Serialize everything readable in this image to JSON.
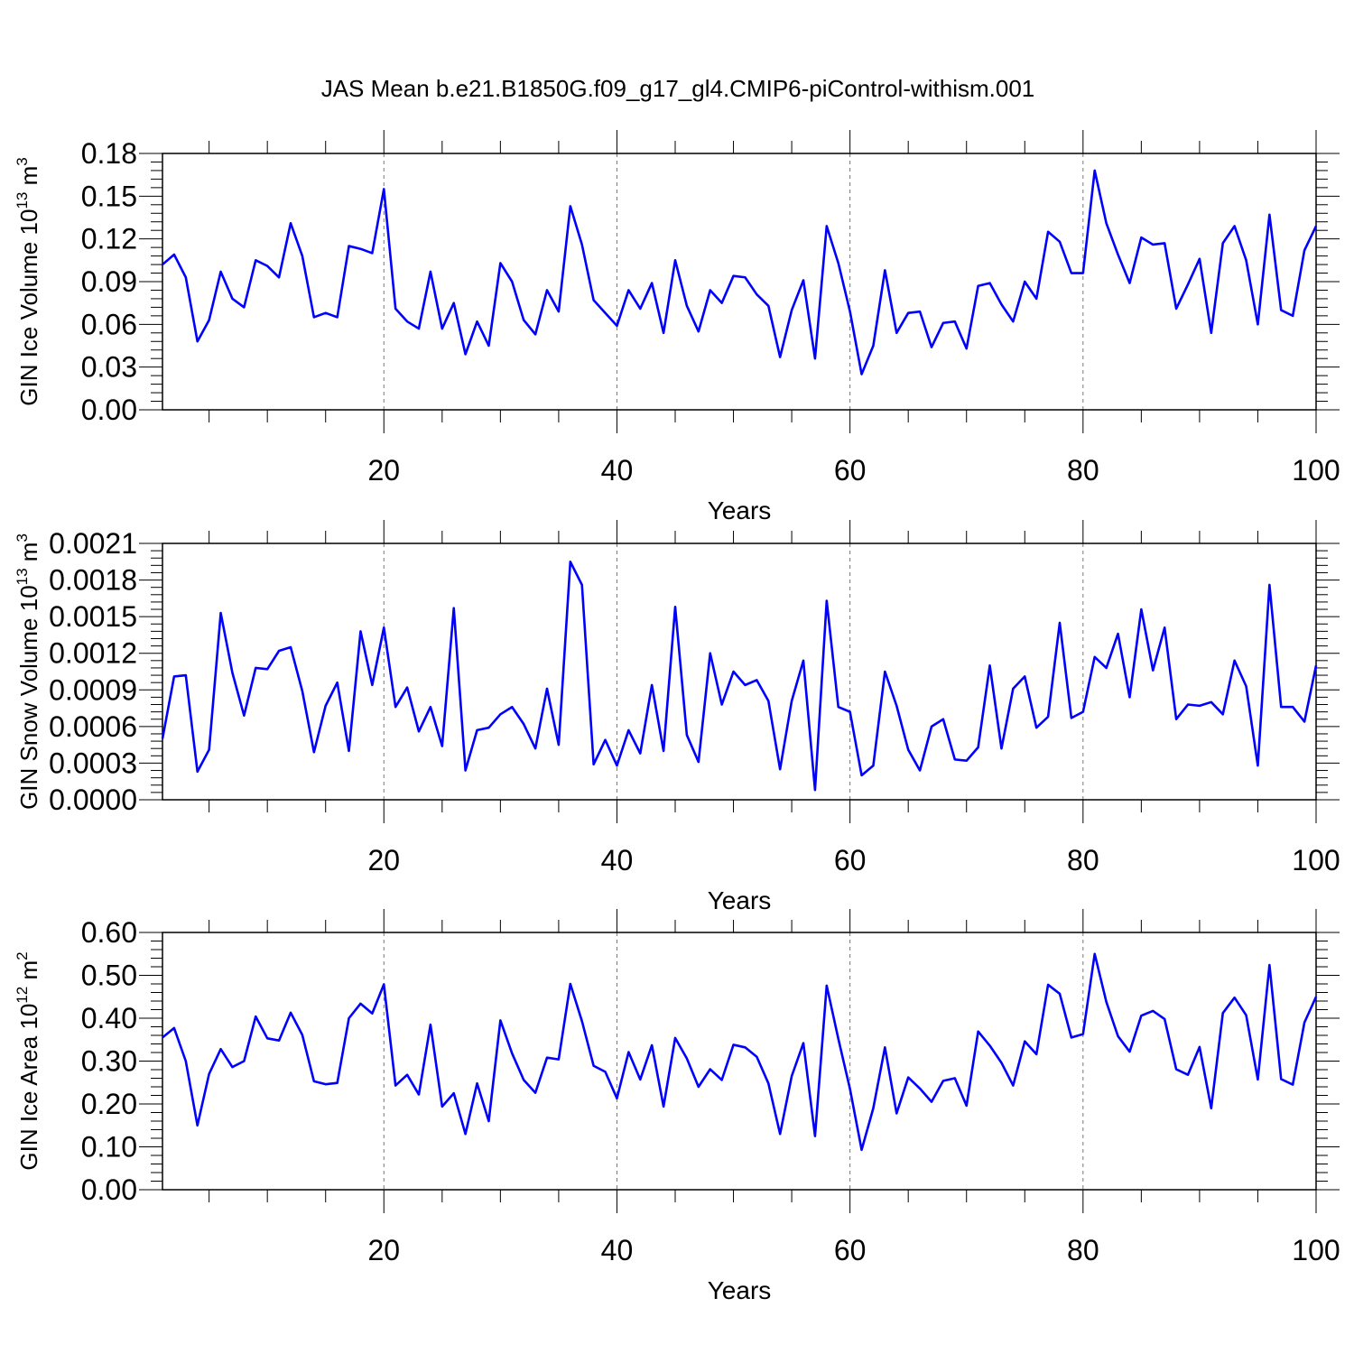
{
  "title": "JAS Mean b.e21.B1850G.f09_g17_gl4.CMIP6-piControl-withism.001",
  "chart_data": [
    {
      "type": "line",
      "ylabel": "GIN Ice Volume 10",
      "ylabel_sup": "13",
      "ylabel_unit": " m",
      "ylabel_unit_sup": "3",
      "xlabel": "Years",
      "xlim": [
        1,
        100
      ],
      "ylim": [
        0,
        0.18
      ],
      "yticks": [
        0,
        0.03,
        0.06,
        0.09,
        0.12,
        0.15,
        0.18
      ],
      "yticklabels": [
        "0.00",
        "0.03",
        "0.06",
        "0.09",
        "0.12",
        "0.15",
        "0.18"
      ],
      "xticks": [
        20,
        40,
        60,
        80,
        100
      ],
      "xticklabels": [
        "20",
        "40",
        "60",
        "80",
        "100"
      ],
      "series": [
        {
          "name": "GIN Ice Volume",
          "color": "#0000ff",
          "values": [
            0.102,
            0.109,
            0.093,
            0.048,
            0.063,
            0.097,
            0.078,
            0.072,
            0.105,
            0.101,
            0.093,
            0.131,
            0.108,
            0.065,
            0.068,
            0.065,
            0.115,
            0.113,
            0.11,
            0.155,
            0.071,
            0.062,
            0.057,
            0.097,
            0.057,
            0.075,
            0.039,
            0.062,
            0.045,
            0.103,
            0.09,
            0.063,
            0.053,
            0.084,
            0.069,
            0.143,
            0.116,
            0.077,
            0.068,
            0.059,
            0.084,
            0.071,
            0.089,
            0.054,
            0.105,
            0.073,
            0.055,
            0.084,
            0.075,
            0.094,
            0.093,
            0.081,
            0.073,
            0.037,
            0.07,
            0.091,
            0.036,
            0.129,
            0.103,
            0.069,
            0.025,
            0.045,
            0.098,
            0.054,
            0.068,
            0.069,
            0.044,
            0.061,
            0.062,
            0.043,
            0.087,
            0.089,
            0.074,
            0.062,
            0.09,
            0.078,
            0.125,
            0.118,
            0.096,
            0.096,
            0.168,
            0.131,
            0.109,
            0.089,
            0.121,
            0.116,
            0.117,
            0.071,
            0.088,
            0.106,
            0.054,
            0.117,
            0.129,
            0.105,
            0.06,
            0.137,
            0.07,
            0.066,
            0.112,
            0.129
          ]
        }
      ]
    },
    {
      "type": "line",
      "ylabel": "GIN Snow Volume 10",
      "ylabel_sup": "13",
      "ylabel_unit": " m",
      "ylabel_unit_sup": "3",
      "xlabel": "Years",
      "xlim": [
        1,
        100
      ],
      "ylim": [
        0,
        0.0021
      ],
      "yticks": [
        0,
        0.0003,
        0.0006,
        0.0009,
        0.0012,
        0.0015,
        0.0018,
        0.0021
      ],
      "yticklabels": [
        "0.0000",
        "0.0003",
        "0.0006",
        "0.0009",
        "0.0012",
        "0.0015",
        "0.0018",
        "0.0021"
      ],
      "xticks": [
        20,
        40,
        60,
        80,
        100
      ],
      "xticklabels": [
        "20",
        "40",
        "60",
        "80",
        "100"
      ],
      "series": [
        {
          "name": "GIN Snow Volume",
          "color": "#0000ff",
          "values": [
            0.0005,
            0.00101,
            0.00102,
            0.00023,
            0.00041,
            0.00153,
            0.00104,
            0.00069,
            0.00108,
            0.00107,
            0.00122,
            0.00125,
            0.00089,
            0.00039,
            0.00077,
            0.00096,
            0.0004,
            0.00138,
            0.00094,
            0.00141,
            0.00076,
            0.00092,
            0.00056,
            0.00076,
            0.00044,
            0.00157,
            0.00024,
            0.00057,
            0.00059,
            0.0007,
            0.00076,
            0.00062,
            0.00042,
            0.00091,
            0.00045,
            0.00195,
            0.00176,
            0.00029,
            0.00049,
            0.00028,
            0.00057,
            0.00038,
            0.00094,
            0.0004,
            0.00158,
            0.00053,
            0.00031,
            0.0012,
            0.00078,
            0.00105,
            0.00094,
            0.00098,
            0.00081,
            0.00025,
            0.00081,
            0.00114,
            8e-05,
            0.00163,
            0.00076,
            0.00072,
            0.0002,
            0.00028,
            0.00105,
            0.00077,
            0.00041,
            0.00024,
            0.0006,
            0.00066,
            0.00033,
            0.00032,
            0.00043,
            0.0011,
            0.00042,
            0.00091,
            0.00101,
            0.00059,
            0.00068,
            0.00145,
            0.00067,
            0.00072,
            0.00117,
            0.00108,
            0.00136,
            0.00084,
            0.00156,
            0.00106,
            0.00141,
            0.00066,
            0.00078,
            0.00077,
            0.0008,
            0.0007,
            0.00114,
            0.00093,
            0.00028,
            0.00176,
            0.00076,
            0.00076,
            0.00064,
            0.0011
          ]
        }
      ]
    },
    {
      "type": "line",
      "ylabel": "GIN Ice Area 10",
      "ylabel_sup": "12",
      "ylabel_unit": " m",
      "ylabel_unit_sup": "2",
      "xlabel": "Years",
      "xlim": [
        1,
        100
      ],
      "ylim": [
        0,
        0.6
      ],
      "yticks": [
        0,
        0.1,
        0.2,
        0.3,
        0.4,
        0.5,
        0.6
      ],
      "yticklabels": [
        "0.00",
        "0.10",
        "0.20",
        "0.30",
        "0.40",
        "0.50",
        "0.60"
      ],
      "xticks": [
        20,
        40,
        60,
        80,
        100
      ],
      "xticklabels": [
        "20",
        "40",
        "60",
        "80",
        "100"
      ],
      "series": [
        {
          "name": "GIN Ice Area",
          "color": "#0000ff",
          "values": [
            0.355,
            0.377,
            0.3,
            0.15,
            0.27,
            0.328,
            0.286,
            0.3,
            0.404,
            0.353,
            0.348,
            0.413,
            0.361,
            0.253,
            0.246,
            0.249,
            0.4,
            0.434,
            0.411,
            0.479,
            0.243,
            0.268,
            0.222,
            0.385,
            0.194,
            0.225,
            0.13,
            0.248,
            0.16,
            0.395,
            0.318,
            0.256,
            0.226,
            0.308,
            0.304,
            0.48,
            0.393,
            0.289,
            0.275,
            0.213,
            0.321,
            0.257,
            0.337,
            0.194,
            0.354,
            0.306,
            0.24,
            0.281,
            0.256,
            0.338,
            0.332,
            0.31,
            0.248,
            0.13,
            0.265,
            0.342,
            0.125,
            0.476,
            0.352,
            0.235,
            0.093,
            0.19,
            0.332,
            0.178,
            0.262,
            0.236,
            0.205,
            0.254,
            0.26,
            0.196,
            0.369,
            0.336,
            0.296,
            0.243,
            0.346,
            0.316,
            0.478,
            0.457,
            0.355,
            0.363,
            0.55,
            0.438,
            0.358,
            0.322,
            0.406,
            0.417,
            0.398,
            0.281,
            0.268,
            0.333,
            0.19,
            0.412,
            0.448,
            0.407,
            0.257,
            0.524,
            0.258,
            0.245,
            0.39,
            0.45
          ]
        }
      ]
    }
  ]
}
